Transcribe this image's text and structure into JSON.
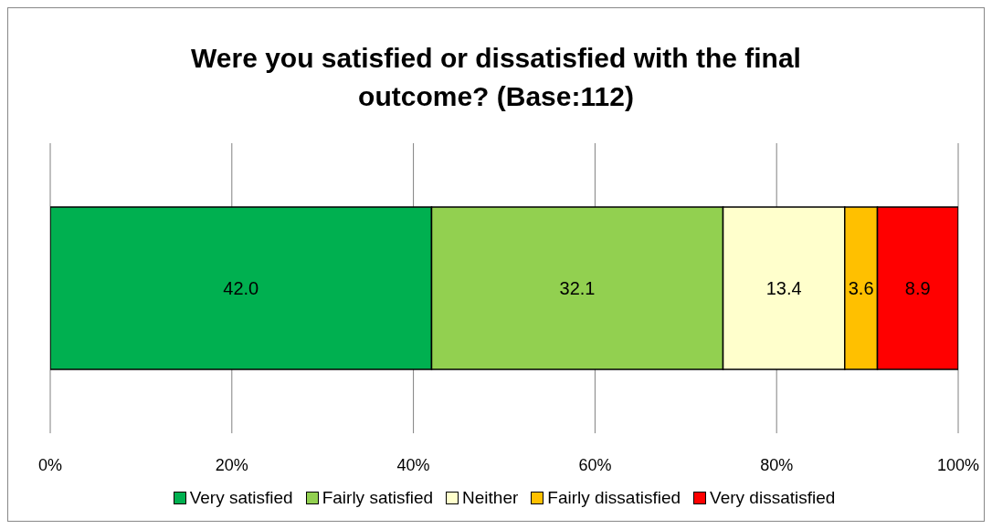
{
  "chart_data": {
    "type": "bar",
    "orientation": "horizontal",
    "stacked": true,
    "title": "Were you satisfied or dissatisfied with the final outcome? (Base:112)",
    "categories": [
      null
    ],
    "series": [
      {
        "name": "Very satisfied",
        "color": "#00b050",
        "values": [
          42.0
        ],
        "value_labels": [
          "42.0"
        ]
      },
      {
        "name": "Fairly satisfied",
        "color": "#92d050",
        "values": [
          32.1
        ],
        "value_labels": [
          "32.1"
        ]
      },
      {
        "name": "Neither",
        "color": "#ffffcc",
        "values": [
          13.4
        ],
        "value_labels": [
          "13.4"
        ]
      },
      {
        "name": "Fairly dissatisfied",
        "color": "#ffc000",
        "values": [
          3.6
        ],
        "value_labels": [
          "3.6"
        ]
      },
      {
        "name": "Very dissatisfied",
        "color": "#ff0000",
        "values": [
          8.9
        ],
        "value_labels": [
          "8.9"
        ]
      }
    ],
    "xlim": [
      0,
      100
    ],
    "xticks": [
      {
        "value": 0,
        "label": "0%"
      },
      {
        "value": 20,
        "label": "20%"
      },
      {
        "value": 40,
        "label": "40%"
      },
      {
        "value": 60,
        "label": "60%"
      },
      {
        "value": 80,
        "label": "80%"
      },
      {
        "value": 100,
        "label": "100%"
      }
    ],
    "grid": "x",
    "legend": "bottom",
    "tick_labels": "x"
  }
}
